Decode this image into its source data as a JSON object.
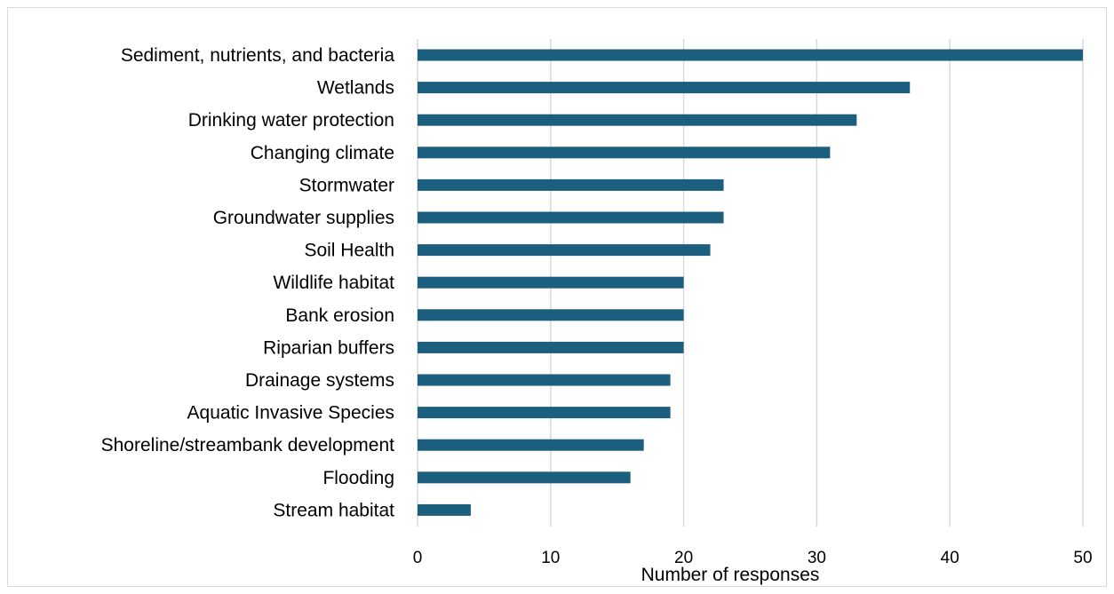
{
  "chart_data": {
    "type": "bar",
    "orientation": "horizontal",
    "title": "",
    "xlabel": "Number of responses",
    "ylabel": "",
    "xlim": [
      0,
      50
    ],
    "x_ticks": [
      0,
      10,
      20,
      30,
      40,
      50
    ],
    "grid": "vertical",
    "legend": "none",
    "bar_color": "#1b5e7e",
    "grid_color": "#d9d9d9",
    "categories": [
      "Sediment, nutrients, and bacteria",
      "Wetlands",
      "Drinking water protection",
      "Changing climate",
      "Stormwater",
      "Groundwater supplies",
      "Soil Health",
      "Wildlife habitat",
      "Bank erosion",
      "Riparian buffers",
      "Drainage systems",
      "Aquatic Invasive Species",
      "Shoreline/streambank development",
      "Flooding",
      "Stream habitat"
    ],
    "values": [
      50,
      37,
      33,
      31,
      23,
      23,
      22,
      20,
      20,
      20,
      19,
      19,
      17,
      16,
      4
    ]
  }
}
